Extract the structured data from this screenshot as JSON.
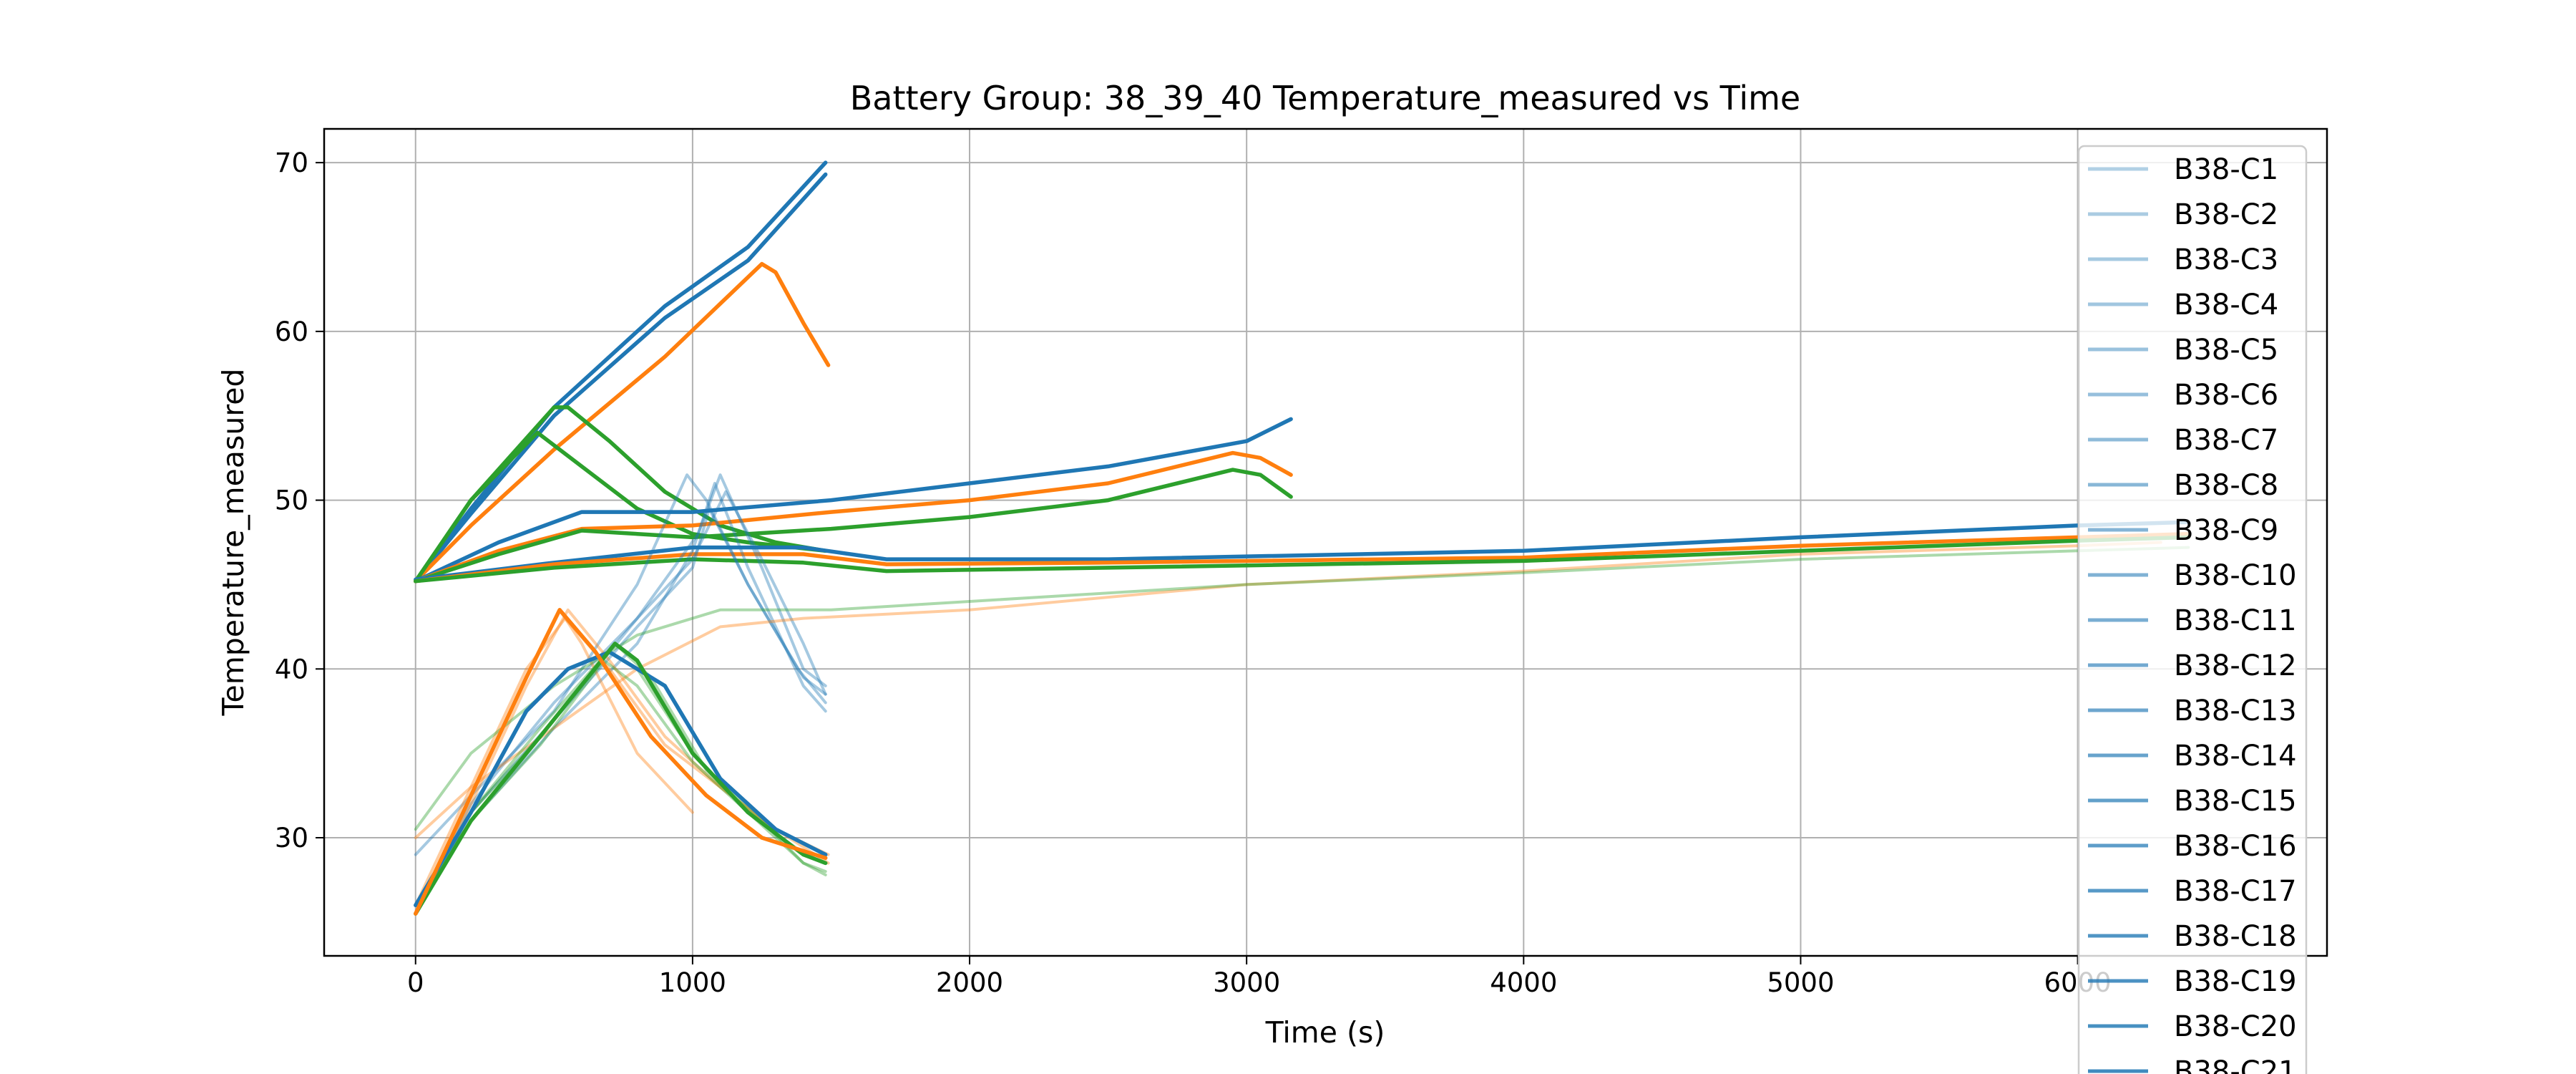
{
  "chart_data": {
    "type": "line",
    "title": "Battery Group: 38_39_40 Temperature_measured vs Time",
    "xlabel": "Time (s)",
    "ylabel": "Temperature_measured",
    "xlim": [
      -330,
      6900
    ],
    "ylim": [
      23,
      72
    ],
    "x_ticks": [
      0,
      1000,
      2000,
      3000,
      4000,
      5000,
      6000
    ],
    "y_ticks": [
      30,
      40,
      50,
      60,
      70
    ],
    "grid": true,
    "legend_position": "right, partially clipped at bottom",
    "colors": {
      "blue": "#1f77b4",
      "orange": "#ff7f0e",
      "green": "#2ca02c"
    },
    "legend_entries": [
      "B38-C1",
      "B38-C2",
      "B38-C3",
      "B38-C4",
      "B38-C5",
      "B38-C6",
      "B38-C7",
      "B38-C8",
      "B38-C9",
      "B38-C10",
      "B38-C11",
      "B38-C12",
      "B38-C13",
      "B38-C14",
      "B38-C15",
      "B38-C16",
      "B38-C17",
      "B38-C18",
      "B38-C19",
      "B38-C20",
      "B38-C21"
    ],
    "series": [
      {
        "color": "#1f77b4",
        "opacity": 1.0,
        "x": [
          0,
          200,
          500,
          900,
          1200,
          1480
        ],
        "y": [
          45.2,
          49.5,
          55.5,
          61.5,
          65,
          70
        ]
      },
      {
        "color": "#1f77b4",
        "opacity": 1.0,
        "x": [
          0,
          200,
          500,
          900,
          1200,
          1480
        ],
        "y": [
          45.2,
          49.2,
          55,
          60.8,
          64.2,
          69.3
        ]
      },
      {
        "color": "#ff7f0e",
        "opacity": 1.0,
        "x": [
          0,
          200,
          500,
          900,
          1250,
          1300,
          1400,
          1490
        ],
        "y": [
          45.2,
          48.5,
          53,
          58.5,
          64,
          63.5,
          60.5,
          58
        ]
      },
      {
        "color": "#2ca02c",
        "opacity": 1.0,
        "x": [
          0,
          200,
          500,
          550,
          700,
          900,
          1100,
          1300,
          1480
        ],
        "y": [
          45.2,
          50,
          55.5,
          55.5,
          53.5,
          50.5,
          48.5,
          47.5,
          47
        ]
      },
      {
        "color": "#2ca02c",
        "opacity": 1.0,
        "x": [
          0,
          200,
          440,
          600,
          800,
          1000,
          1200,
          1480
        ],
        "y": [
          45.2,
          50,
          54,
          52,
          49.5,
          48,
          47.5,
          47
        ]
      },
      {
        "color": "#1f77b4",
        "opacity": 1.0,
        "x": [
          0,
          300,
          600,
          1000,
          1500,
          2000,
          2500,
          3000,
          3160
        ],
        "y": [
          45.2,
          47.5,
          49.3,
          49.3,
          50,
          51,
          52,
          53.5,
          54.8
        ]
      },
      {
        "color": "#ff7f0e",
        "opacity": 1.0,
        "x": [
          0,
          300,
          600,
          1000,
          1500,
          2000,
          2500,
          2950,
          3050,
          3160
        ],
        "y": [
          45.2,
          47,
          48.3,
          48.5,
          49.3,
          50,
          51,
          52.8,
          52.5,
          51.5
        ]
      },
      {
        "color": "#2ca02c",
        "opacity": 1.0,
        "x": [
          0,
          300,
          600,
          1000,
          1500,
          2000,
          2500,
          2950,
          3050,
          3160
        ],
        "y": [
          45.2,
          46.8,
          48.2,
          47.8,
          48.3,
          49,
          50,
          51.8,
          51.5,
          50.2
        ]
      },
      {
        "color": "#1f77b4",
        "opacity": 1.0,
        "x": [
          0,
          500,
          1000,
          1400,
          1700,
          2500,
          4000,
          5000,
          6000,
          6400
        ],
        "y": [
          45.3,
          46.3,
          47.2,
          47.2,
          46.5,
          46.5,
          47,
          47.8,
          48.5,
          48.7
        ]
      },
      {
        "color": "#ff7f0e",
        "opacity": 1.0,
        "x": [
          0,
          500,
          1000,
          1400,
          1700,
          2500,
          4000,
          5000,
          6000,
          6400
        ],
        "y": [
          45.2,
          46.2,
          46.8,
          46.8,
          46.2,
          46.3,
          46.6,
          47.3,
          47.8,
          48
        ]
      },
      {
        "color": "#2ca02c",
        "opacity": 1.0,
        "x": [
          0,
          500,
          1000,
          1400,
          1700,
          2500,
          4000,
          5000,
          6000,
          6400
        ],
        "y": [
          45.2,
          46,
          46.5,
          46.3,
          45.8,
          46,
          46.4,
          47,
          47.6,
          47.8
        ]
      },
      {
        "color": "#1f77b4",
        "opacity": 0.4,
        "x": [
          0,
          200,
          500,
          800,
          1000,
          1080,
          1200,
          1400,
          1480
        ],
        "y": [
          25.5,
          31,
          36.5,
          41.5,
          47,
          51,
          46,
          39,
          37.5
        ]
      },
      {
        "color": "#1f77b4",
        "opacity": 0.4,
        "x": [
          0,
          200,
          500,
          800,
          1020,
          1100,
          1250,
          1400,
          1480
        ],
        "y": [
          25.5,
          31.5,
          37,
          43,
          48,
          51.5,
          46,
          40,
          39
        ]
      },
      {
        "color": "#1f77b4",
        "opacity": 0.4,
        "x": [
          0,
          200,
          500,
          800,
          980,
          1050,
          1200,
          1380,
          1480
        ],
        "y": [
          29,
          32.5,
          37.5,
          45,
          51.5,
          50,
          45,
          40,
          38
        ]
      },
      {
        "color": "#1f77b4",
        "opacity": 0.4,
        "x": [
          0,
          200,
          500,
          800,
          1000,
          1120,
          1250,
          1400,
          1480
        ],
        "y": [
          25.5,
          32,
          38,
          43,
          46.5,
          50.5,
          46.5,
          41.5,
          38.5
        ]
      },
      {
        "color": "#1f77b4",
        "opacity": 0.4,
        "x": [
          0,
          200,
          500,
          800,
          1000,
          1060,
          1200,
          1400,
          1480
        ],
        "y": [
          26,
          31,
          37,
          42.5,
          46,
          49.5,
          45,
          39.5,
          38.5
        ]
      },
      {
        "color": "#ff7f0e",
        "opacity": 0.4,
        "x": [
          0,
          200,
          400,
          520,
          600,
          800,
          1000
        ],
        "y": [
          25.5,
          32.5,
          39.5,
          43.5,
          41.5,
          35,
          31.5
        ]
      },
      {
        "color": "#ff7f0e",
        "opacity": 0.4,
        "x": [
          0,
          200,
          400,
          550,
          700,
          900,
          1100,
          1300,
          1490
        ],
        "y": [
          25.5,
          32,
          39,
          43.5,
          40.5,
          36,
          33,
          30.5,
          29
        ]
      },
      {
        "color": "#ff7f0e",
        "opacity": 0.4,
        "x": [
          0,
          200,
          400,
          540,
          700,
          900,
          1100,
          1300,
          1490
        ],
        "y": [
          26,
          33,
          40,
          43,
          40,
          35.5,
          33,
          30.5,
          28.5
        ]
      },
      {
        "color": "#ff7f0e",
        "opacity": 0.4,
        "x": [
          0,
          200,
          500,
          800,
          1100,
          1400,
          2000,
          3000,
          4000,
          5000,
          6000,
          6300
        ],
        "y": [
          30,
          33,
          36.5,
          40,
          42.5,
          43,
          43.5,
          45,
          45.8,
          46.8,
          47.3,
          47.5
        ]
      },
      {
        "color": "#2ca02c",
        "opacity": 0.4,
        "x": [
          0,
          200,
          450,
          700,
          800,
          1000,
          1200,
          1400,
          1480
        ],
        "y": [
          26,
          31.5,
          36,
          41,
          40,
          35,
          31.5,
          28.5,
          28
        ]
      },
      {
        "color": "#2ca02c",
        "opacity": 0.4,
        "x": [
          0,
          200,
          450,
          720,
          850,
          1050,
          1250,
          1400,
          1480
        ],
        "y": [
          25.5,
          31.5,
          36.5,
          41.5,
          39.5,
          34,
          31,
          28.5,
          27.8
        ]
      },
      {
        "color": "#2ca02c",
        "opacity": 0.4,
        "x": [
          0,
          200,
          450,
          680,
          800,
          1000,
          1200,
          1400,
          1480
        ],
        "y": [
          25.5,
          31,
          35.5,
          40.5,
          39,
          34.5,
          31.5,
          29,
          28.5
        ]
      },
      {
        "color": "#2ca02c",
        "opacity": 0.4,
        "x": [
          0,
          200,
          500,
          800,
          1100,
          1500,
          2000,
          3000,
          4000,
          5000,
          6000,
          6400
        ],
        "y": [
          30.5,
          35,
          39,
          42,
          43.5,
          43.5,
          44,
          45,
          45.7,
          46.5,
          47,
          47.2
        ]
      },
      {
        "color": "#1f77b4",
        "opacity": 1.0,
        "x": [
          0,
          200,
          400,
          550,
          700,
          900,
          1100,
          1300,
          1480
        ],
        "y": [
          26,
          31.5,
          37.5,
          40,
          41,
          39,
          33.5,
          30.5,
          29
        ]
      },
      {
        "color": "#2ca02c",
        "opacity": 1.0,
        "x": [
          0,
          200,
          450,
          720,
          800,
          1000,
          1200,
          1400,
          1480
        ],
        "y": [
          25.5,
          31,
          36,
          41.5,
          40.5,
          35,
          31.5,
          29,
          28.5
        ]
      },
      {
        "color": "#ff7f0e",
        "opacity": 1.0,
        "x": [
          0,
          200,
          400,
          520,
          650,
          850,
          1050,
          1250,
          1480
        ],
        "y": [
          25.5,
          32.5,
          39.5,
          43.5,
          41,
          36,
          32.5,
          30,
          28.8
        ]
      }
    ]
  }
}
